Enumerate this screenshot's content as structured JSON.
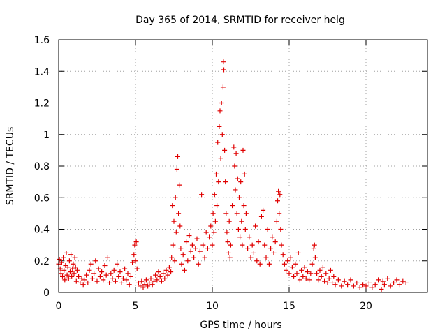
{
  "chart_data": {
    "type": "scatter",
    "title": "Day 365 of 2014, SRMTID for receiver helg",
    "xlabel": "GPS time / hours",
    "ylabel": "SRMTID / TECUs",
    "xlim": [
      0,
      24
    ],
    "ylim": [
      0,
      1.6
    ],
    "xticks": [
      0,
      5,
      10,
      15,
      20
    ],
    "yticks": [
      0,
      0.2,
      0.4,
      0.6,
      0.8,
      1.0,
      1.2,
      1.4,
      1.6
    ],
    "xtick_labels": [
      "0",
      "5",
      "10",
      "15",
      "20"
    ],
    "ytick_labels": [
      "0",
      "0.2",
      "0.4",
      "0.6",
      "0.8",
      "1",
      "1.2",
      "1.4",
      "1.6"
    ],
    "grid": true,
    "marker": "+",
    "color": "#e00000",
    "series": [
      {
        "name": "SRMTID",
        "points": [
          [
            0.0,
            0.18
          ],
          [
            0.05,
            0.21
          ],
          [
            0.1,
            0.15
          ],
          [
            0.15,
            0.12
          ],
          [
            0.2,
            0.19
          ],
          [
            0.25,
            0.1
          ],
          [
            0.3,
            0.22
          ],
          [
            0.35,
            0.14
          ],
          [
            0.4,
            0.08
          ],
          [
            0.45,
            0.17
          ],
          [
            0.5,
            0.25
          ],
          [
            0.55,
            0.11
          ],
          [
            0.6,
            0.16
          ],
          [
            0.65,
            0.09
          ],
          [
            0.7,
            0.2
          ],
          [
            0.75,
            0.13
          ],
          [
            0.8,
            0.24
          ],
          [
            0.85,
            0.1
          ],
          [
            0.9,
            0.15
          ],
          [
            0.95,
            0.18
          ],
          [
            1.0,
            0.12
          ],
          [
            1.05,
            0.22
          ],
          [
            1.1,
            0.16
          ],
          [
            1.15,
            0.07
          ],
          [
            1.2,
            0.14
          ],
          [
            1.3,
            0.1
          ],
          [
            1.4,
            0.06
          ],
          [
            1.5,
            0.09
          ],
          [
            1.6,
            0.05
          ],
          [
            1.7,
            0.08
          ],
          [
            1.8,
            0.11
          ],
          [
            1.9,
            0.06
          ],
          [
            2.0,
            0.14
          ],
          [
            2.1,
            0.18
          ],
          [
            2.2,
            0.09
          ],
          [
            2.3,
            0.12
          ],
          [
            2.4,
            0.2
          ],
          [
            2.5,
            0.07
          ],
          [
            2.6,
            0.15
          ],
          [
            2.7,
            0.1
          ],
          [
            2.8,
            0.13
          ],
          [
            2.9,
            0.08
          ],
          [
            3.0,
            0.17
          ],
          [
            3.1,
            0.11
          ],
          [
            3.2,
            0.22
          ],
          [
            3.3,
            0.06
          ],
          [
            3.4,
            0.12
          ],
          [
            3.5,
            0.09
          ],
          [
            3.6,
            0.14
          ],
          [
            3.7,
            0.07
          ],
          [
            3.8,
            0.18
          ],
          [
            3.9,
            0.1
          ],
          [
            4.0,
            0.13
          ],
          [
            4.1,
            0.06
          ],
          [
            4.2,
            0.09
          ],
          [
            4.3,
            0.15
          ],
          [
            4.4,
            0.08
          ],
          [
            4.5,
            0.12
          ],
          [
            4.6,
            0.05
          ],
          [
            4.7,
            0.1
          ],
          [
            4.8,
            0.19
          ],
          [
            4.9,
            0.24
          ],
          [
            4.95,
            0.3
          ],
          [
            5.0,
            0.2
          ],
          [
            5.05,
            0.32
          ],
          [
            5.1,
            0.15
          ],
          [
            5.2,
            0.06
          ],
          [
            5.3,
            0.04
          ],
          [
            5.4,
            0.07
          ],
          [
            5.5,
            0.03
          ],
          [
            5.6,
            0.05
          ],
          [
            5.7,
            0.08
          ],
          [
            5.8,
            0.04
          ],
          [
            5.9,
            0.06
          ],
          [
            6.0,
            0.09
          ],
          [
            6.1,
            0.05
          ],
          [
            6.2,
            0.07
          ],
          [
            6.3,
            0.11
          ],
          [
            6.4,
            0.08
          ],
          [
            6.5,
            0.13
          ],
          [
            6.6,
            0.1
          ],
          [
            6.7,
            0.07
          ],
          [
            6.8,
            0.12
          ],
          [
            6.9,
            0.09
          ],
          [
            7.0,
            0.14
          ],
          [
            7.1,
            0.11
          ],
          [
            7.2,
            0.16
          ],
          [
            7.3,
            0.13
          ],
          [
            7.35,
            0.22
          ],
          [
            7.4,
            0.55
          ],
          [
            7.45,
            0.3
          ],
          [
            7.5,
            0.45
          ],
          [
            7.55,
            0.2
          ],
          [
            7.6,
            0.6
          ],
          [
            7.65,
            0.38
          ],
          [
            7.7,
            0.78
          ],
          [
            7.75,
            0.86
          ],
          [
            7.8,
            0.5
          ],
          [
            7.85,
            0.68
          ],
          [
            7.9,
            0.42
          ],
          [
            7.95,
            0.28
          ],
          [
            8.0,
            0.18
          ],
          [
            8.1,
            0.24
          ],
          [
            8.2,
            0.14
          ],
          [
            8.3,
            0.32
          ],
          [
            8.4,
            0.2
          ],
          [
            8.5,
            0.36
          ],
          [
            8.6,
            0.26
          ],
          [
            8.7,
            0.3
          ],
          [
            8.8,
            0.22
          ],
          [
            8.9,
            0.28
          ],
          [
            9.0,
            0.34
          ],
          [
            9.1,
            0.18
          ],
          [
            9.2,
            0.26
          ],
          [
            9.3,
            0.62
          ],
          [
            9.4,
            0.3
          ],
          [
            9.5,
            0.22
          ],
          [
            9.6,
            0.38
          ],
          [
            9.7,
            0.28
          ],
          [
            9.8,
            0.35
          ],
          [
            9.9,
            0.42
          ],
          [
            10.0,
            0.3
          ],
          [
            10.05,
            0.5
          ],
          [
            10.1,
            0.38
          ],
          [
            10.15,
            0.62
          ],
          [
            10.2,
            0.45
          ],
          [
            10.25,
            0.75
          ],
          [
            10.3,
            0.55
          ],
          [
            10.35,
            0.95
          ],
          [
            10.4,
            0.7
          ],
          [
            10.45,
            1.05
          ],
          [
            10.5,
            1.15
          ],
          [
            10.55,
            0.85
          ],
          [
            10.6,
            1.2
          ],
          [
            10.65,
            1.0
          ],
          [
            10.7,
            1.3
          ],
          [
            10.72,
            1.46
          ],
          [
            10.75,
            1.41
          ],
          [
            10.8,
            0.9
          ],
          [
            10.85,
            0.7
          ],
          [
            10.9,
            0.5
          ],
          [
            10.95,
            0.38
          ],
          [
            11.0,
            0.32
          ],
          [
            11.05,
            0.25
          ],
          [
            11.1,
            0.45
          ],
          [
            11.15,
            0.22
          ],
          [
            11.2,
            0.3
          ],
          [
            11.3,
            0.55
          ],
          [
            11.4,
            0.92
          ],
          [
            11.45,
            0.8
          ],
          [
            11.5,
            0.65
          ],
          [
            11.55,
            0.88
          ],
          [
            11.6,
            0.5
          ],
          [
            11.65,
            0.72
          ],
          [
            11.7,
            0.4
          ],
          [
            11.75,
            0.6
          ],
          [
            11.8,
            0.35
          ],
          [
            11.85,
            0.7
          ],
          [
            11.9,
            0.45
          ],
          [
            11.95,
            0.3
          ],
          [
            12.0,
            0.9
          ],
          [
            12.05,
            0.55
          ],
          [
            12.1,
            0.75
          ],
          [
            12.15,
            0.4
          ],
          [
            12.2,
            0.5
          ],
          [
            12.3,
            0.28
          ],
          [
            12.4,
            0.35
          ],
          [
            12.5,
            0.22
          ],
          [
            12.6,
            0.3
          ],
          [
            12.7,
            0.25
          ],
          [
            12.8,
            0.42
          ],
          [
            12.9,
            0.2
          ],
          [
            13.0,
            0.32
          ],
          [
            13.1,
            0.18
          ],
          [
            13.2,
            0.48
          ],
          [
            13.3,
            0.52
          ],
          [
            13.4,
            0.3
          ],
          [
            13.5,
            0.22
          ],
          [
            13.6,
            0.4
          ],
          [
            13.7,
            0.18
          ],
          [
            13.8,
            0.28
          ],
          [
            13.9,
            0.35
          ],
          [
            14.0,
            0.25
          ],
          [
            14.1,
            0.32
          ],
          [
            14.2,
            0.45
          ],
          [
            14.25,
            0.58
          ],
          [
            14.3,
            0.64
          ],
          [
            14.35,
            0.5
          ],
          [
            14.4,
            0.62
          ],
          [
            14.45,
            0.4
          ],
          [
            14.5,
            0.3
          ],
          [
            14.6,
            0.24
          ],
          [
            14.7,
            0.18
          ],
          [
            14.8,
            0.14
          ],
          [
            14.9,
            0.2
          ],
          [
            15.0,
            0.12
          ],
          [
            15.1,
            0.22
          ],
          [
            15.2,
            0.16
          ],
          [
            15.3,
            0.1
          ],
          [
            15.4,
            0.18
          ],
          [
            15.5,
            0.12
          ],
          [
            15.6,
            0.25
          ],
          [
            15.7,
            0.08
          ],
          [
            15.8,
            0.14
          ],
          [
            15.9,
            0.1
          ],
          [
            16.0,
            0.16
          ],
          [
            16.1,
            0.09
          ],
          [
            16.2,
            0.13
          ],
          [
            16.3,
            0.08
          ],
          [
            16.4,
            0.12
          ],
          [
            16.5,
            0.18
          ],
          [
            16.6,
            0.28
          ],
          [
            16.65,
            0.3
          ],
          [
            16.7,
            0.22
          ],
          [
            16.8,
            0.12
          ],
          [
            16.9,
            0.08
          ],
          [
            17.0,
            0.14
          ],
          [
            17.1,
            0.1
          ],
          [
            17.2,
            0.16
          ],
          [
            17.3,
            0.07
          ],
          [
            17.4,
            0.12
          ],
          [
            17.5,
            0.06
          ],
          [
            17.6,
            0.09
          ],
          [
            17.7,
            0.14
          ],
          [
            17.8,
            0.06
          ],
          [
            17.9,
            0.1
          ],
          [
            18.0,
            0.05
          ],
          [
            18.2,
            0.08
          ],
          [
            18.4,
            0.04
          ],
          [
            18.6,
            0.07
          ],
          [
            18.8,
            0.05
          ],
          [
            19.0,
            0.08
          ],
          [
            19.2,
            0.04
          ],
          [
            19.4,
            0.06
          ],
          [
            19.6,
            0.03
          ],
          [
            19.8,
            0.05
          ],
          [
            20.0,
            0.04
          ],
          [
            20.2,
            0.06
          ],
          [
            20.4,
            0.03
          ],
          [
            20.6,
            0.05
          ],
          [
            20.8,
            0.08
          ],
          [
            21.0,
            0.02
          ],
          [
            21.1,
            0.07
          ],
          [
            21.2,
            0.05
          ],
          [
            21.4,
            0.09
          ],
          [
            21.6,
            0.04
          ],
          [
            21.8,
            0.06
          ],
          [
            22.0,
            0.08
          ],
          [
            22.2,
            0.05
          ],
          [
            22.4,
            0.07
          ],
          [
            22.6,
            0.06
          ]
        ]
      }
    ]
  }
}
